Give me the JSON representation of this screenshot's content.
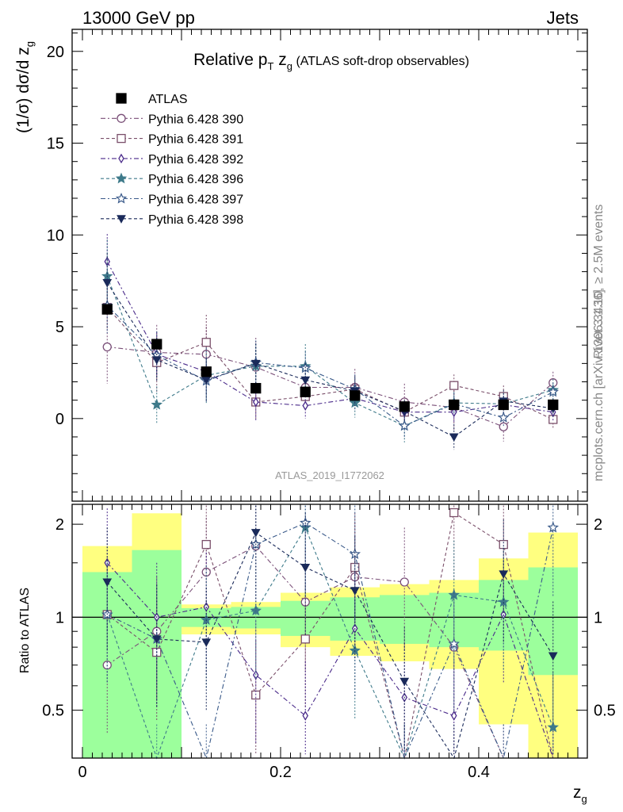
{
  "header": {
    "left": "13000 GeV pp",
    "right": "Jets"
  },
  "side_labels": {
    "rivet": "Rivet 3.1.10, ≥ 2.5M events",
    "mcplots": "mcplots.cern.ch [arXiv:1306.3436]"
  },
  "watermark": "ATLAS_2019_I1772062",
  "chart_data": [
    {
      "type": "scatter",
      "title_main": "Relative p",
      "title_sub_T": "T",
      "title_mid": " z",
      "title_sub_g": "g",
      "title_tail": " (ATLAS soft-drop observables)",
      "ylabel": "(1/σ) dσ/d z",
      "ylabel_sub": "g",
      "xlabel": "z",
      "xlabel_sub": "g",
      "xlim": [
        0,
        0.5
      ],
      "ylim": [
        -4.5,
        21.2
      ],
      "yticks": [
        0,
        5,
        10,
        15,
        20
      ],
      "yticklabels": [
        "0",
        "5",
        "10",
        "15",
        "20"
      ],
      "grid": false,
      "legend_position": "top-left",
      "x": [
        0.025,
        0.075,
        0.125,
        0.175,
        0.225,
        0.275,
        0.325,
        0.375,
        0.425,
        0.475
      ],
      "series": [
        {
          "name": "ATLAS",
          "color": "#000000",
          "marker": "square-filled",
          "values": [
            5.95,
            4.05,
            2.55,
            1.65,
            1.45,
            1.25,
            0.65,
            0.75,
            0.75,
            0.75
          ]
        },
        {
          "name": "Pythia 6.428 390",
          "color": "#7a4f78",
          "marker": "circle-open",
          "values": [
            3.9,
            3.6,
            3.5,
            2.8,
            1.7,
            1.7,
            0.9,
            0.6,
            -0.45,
            1.95
          ],
          "errors": [
            2.0,
            1.5,
            1.5,
            1.6,
            1.3,
            1.0,
            1.0,
            1.3,
            0.8,
            0.6
          ]
        },
        {
          "name": "Pythia 6.428 391",
          "color": "#7a4f6a",
          "marker": "square-open",
          "values": [
            6.05,
            3.05,
            4.15,
            0.9,
            1.2,
            1.6,
            0.35,
            1.8,
            1.2,
            -0.05
          ],
          "errors": [
            1.2,
            1.6,
            1.5,
            0.9,
            0.7,
            0.6,
            0.7,
            0.6,
            0.6,
            0.5
          ]
        },
        {
          "name": "Pythia 6.428 392",
          "color": "#4a2a8a",
          "marker": "diamond-open",
          "values": [
            8.55,
            3.5,
            2.55,
            0.9,
            0.7,
            1.1,
            0.35,
            0.35,
            0.75,
            0.35
          ],
          "errors": [
            1.5,
            1.2,
            1.3,
            1.0,
            0.7,
            0.7,
            0.6,
            0.6,
            0.5,
            0.5
          ]
        },
        {
          "name": "Pythia 6.428 396",
          "color": "#3e7a8a",
          "marker": "star-filled",
          "values": [
            7.75,
            0.75,
            2.35,
            2.85,
            2.85,
            0.85,
            -0.4,
            0.85,
            0.8,
            1.55
          ],
          "errors": [
            2.0,
            1.0,
            1.5,
            1.2,
            1.2,
            0.8,
            0.9,
            0.6,
            0.6,
            0.6
          ]
        },
        {
          "name": "Pythia 6.428 397",
          "color": "#3a5a8a",
          "marker": "star-open",
          "values": [
            6.15,
            3.45,
            2.05,
            3.05,
            2.75,
            1.6,
            -0.4,
            0.8,
            0.05,
            1.45
          ],
          "errors": [
            1.5,
            1.3,
            1.2,
            1.2,
            0.9,
            0.8,
            0.7,
            0.6,
            0.5,
            0.5
          ]
        },
        {
          "name": "Pythia 6.428 398",
          "color": "#1a2a5a",
          "marker": "triangle-down-filled",
          "values": [
            7.4,
            3.2,
            2.1,
            3.0,
            2.1,
            1.5,
            0.4,
            -1.0,
            0.95,
            0.55
          ],
          "errors": [
            1.6,
            1.2,
            1.2,
            1.1,
            0.9,
            0.8,
            0.6,
            0.7,
            0.6,
            0.5
          ]
        }
      ]
    },
    {
      "type": "scatter",
      "ylabel": "Ratio to ATLAS",
      "xlabel": "z",
      "xlabel_sub": "g",
      "xlim": [
        0,
        0.5
      ],
      "ylim": [
        0.35,
        2.32
      ],
      "yticks": [
        0.5,
        1,
        2
      ],
      "yticklabels": [
        "0.5",
        "1",
        "2"
      ],
      "xticks": [
        0,
        0.2,
        0.4
      ],
      "xticklabels": [
        "0",
        "0.2",
        "0.4"
      ],
      "bin_edges": [
        0,
        0.05,
        0.1,
        0.15,
        0.2,
        0.25,
        0.3,
        0.35,
        0.4,
        0.45,
        0.5
      ],
      "band_outer": [
        [
          0.72,
          1.7
        ],
        [
          0.35,
          2.17
        ],
        [
          0.88,
          1.1
        ],
        [
          0.88,
          1.12
        ],
        [
          0.8,
          1.2
        ],
        [
          0.75,
          1.25
        ],
        [
          0.72,
          1.28
        ],
        [
          0.68,
          1.32
        ],
        [
          0.45,
          1.55
        ],
        [
          0.35,
          1.88
        ]
      ],
      "band_inner": [
        [
          0.35,
          1.4
        ],
        [
          0.35,
          1.65
        ],
        [
          0.93,
          1.07
        ],
        [
          0.92,
          1.08
        ],
        [
          0.87,
          1.13
        ],
        [
          0.84,
          1.16
        ],
        [
          0.82,
          1.18
        ],
        [
          0.8,
          1.2
        ],
        [
          0.78,
          1.32
        ],
        [
          0.65,
          1.45
        ]
      ],
      "band_colors": {
        "outer": "#ffff80",
        "inner": "#9cff9c"
      },
      "x": [
        0.025,
        0.075,
        0.125,
        0.175,
        0.225,
        0.275,
        0.325,
        0.375,
        0.425,
        0.475
      ],
      "series": [
        {
          "name": "Pythia 6.428 390",
          "values": [
            0.7,
            0.9,
            1.4,
            1.7,
            1.12,
            1.35,
            1.3,
            0.8,
            0.3,
            0.3
          ]
        },
        {
          "name": "Pythia 6.428 391",
          "values": [
            1.02,
            0.77,
            1.72,
            0.56,
            0.85,
            1.45,
            0.3,
            2.18,
            1.72,
            0.3
          ]
        },
        {
          "name": "Pythia 6.428 392",
          "values": [
            1.5,
            1.0,
            1.08,
            0.65,
            0.48,
            0.92,
            0.55,
            0.48,
            1.02,
            0.3
          ]
        },
        {
          "name": "Pythia 6.428 396",
          "values": [
            1.02,
            0.3,
            0.98,
            1.05,
            1.95,
            0.78,
            0.3,
            1.18,
            1.12,
            0.44
          ]
        },
        {
          "name": "Pythia 6.428 397",
          "values": [
            1.02,
            0.85,
            0.3,
            1.72,
            2.02,
            1.6,
            0.3,
            0.82,
            0.3,
            1.95
          ]
        },
        {
          "name": "Pythia 6.428 398",
          "values": [
            1.3,
            0.85,
            0.83,
            1.88,
            1.45,
            1.22,
            0.62,
            0.3,
            1.38,
            0.75
          ]
        }
      ]
    }
  ]
}
